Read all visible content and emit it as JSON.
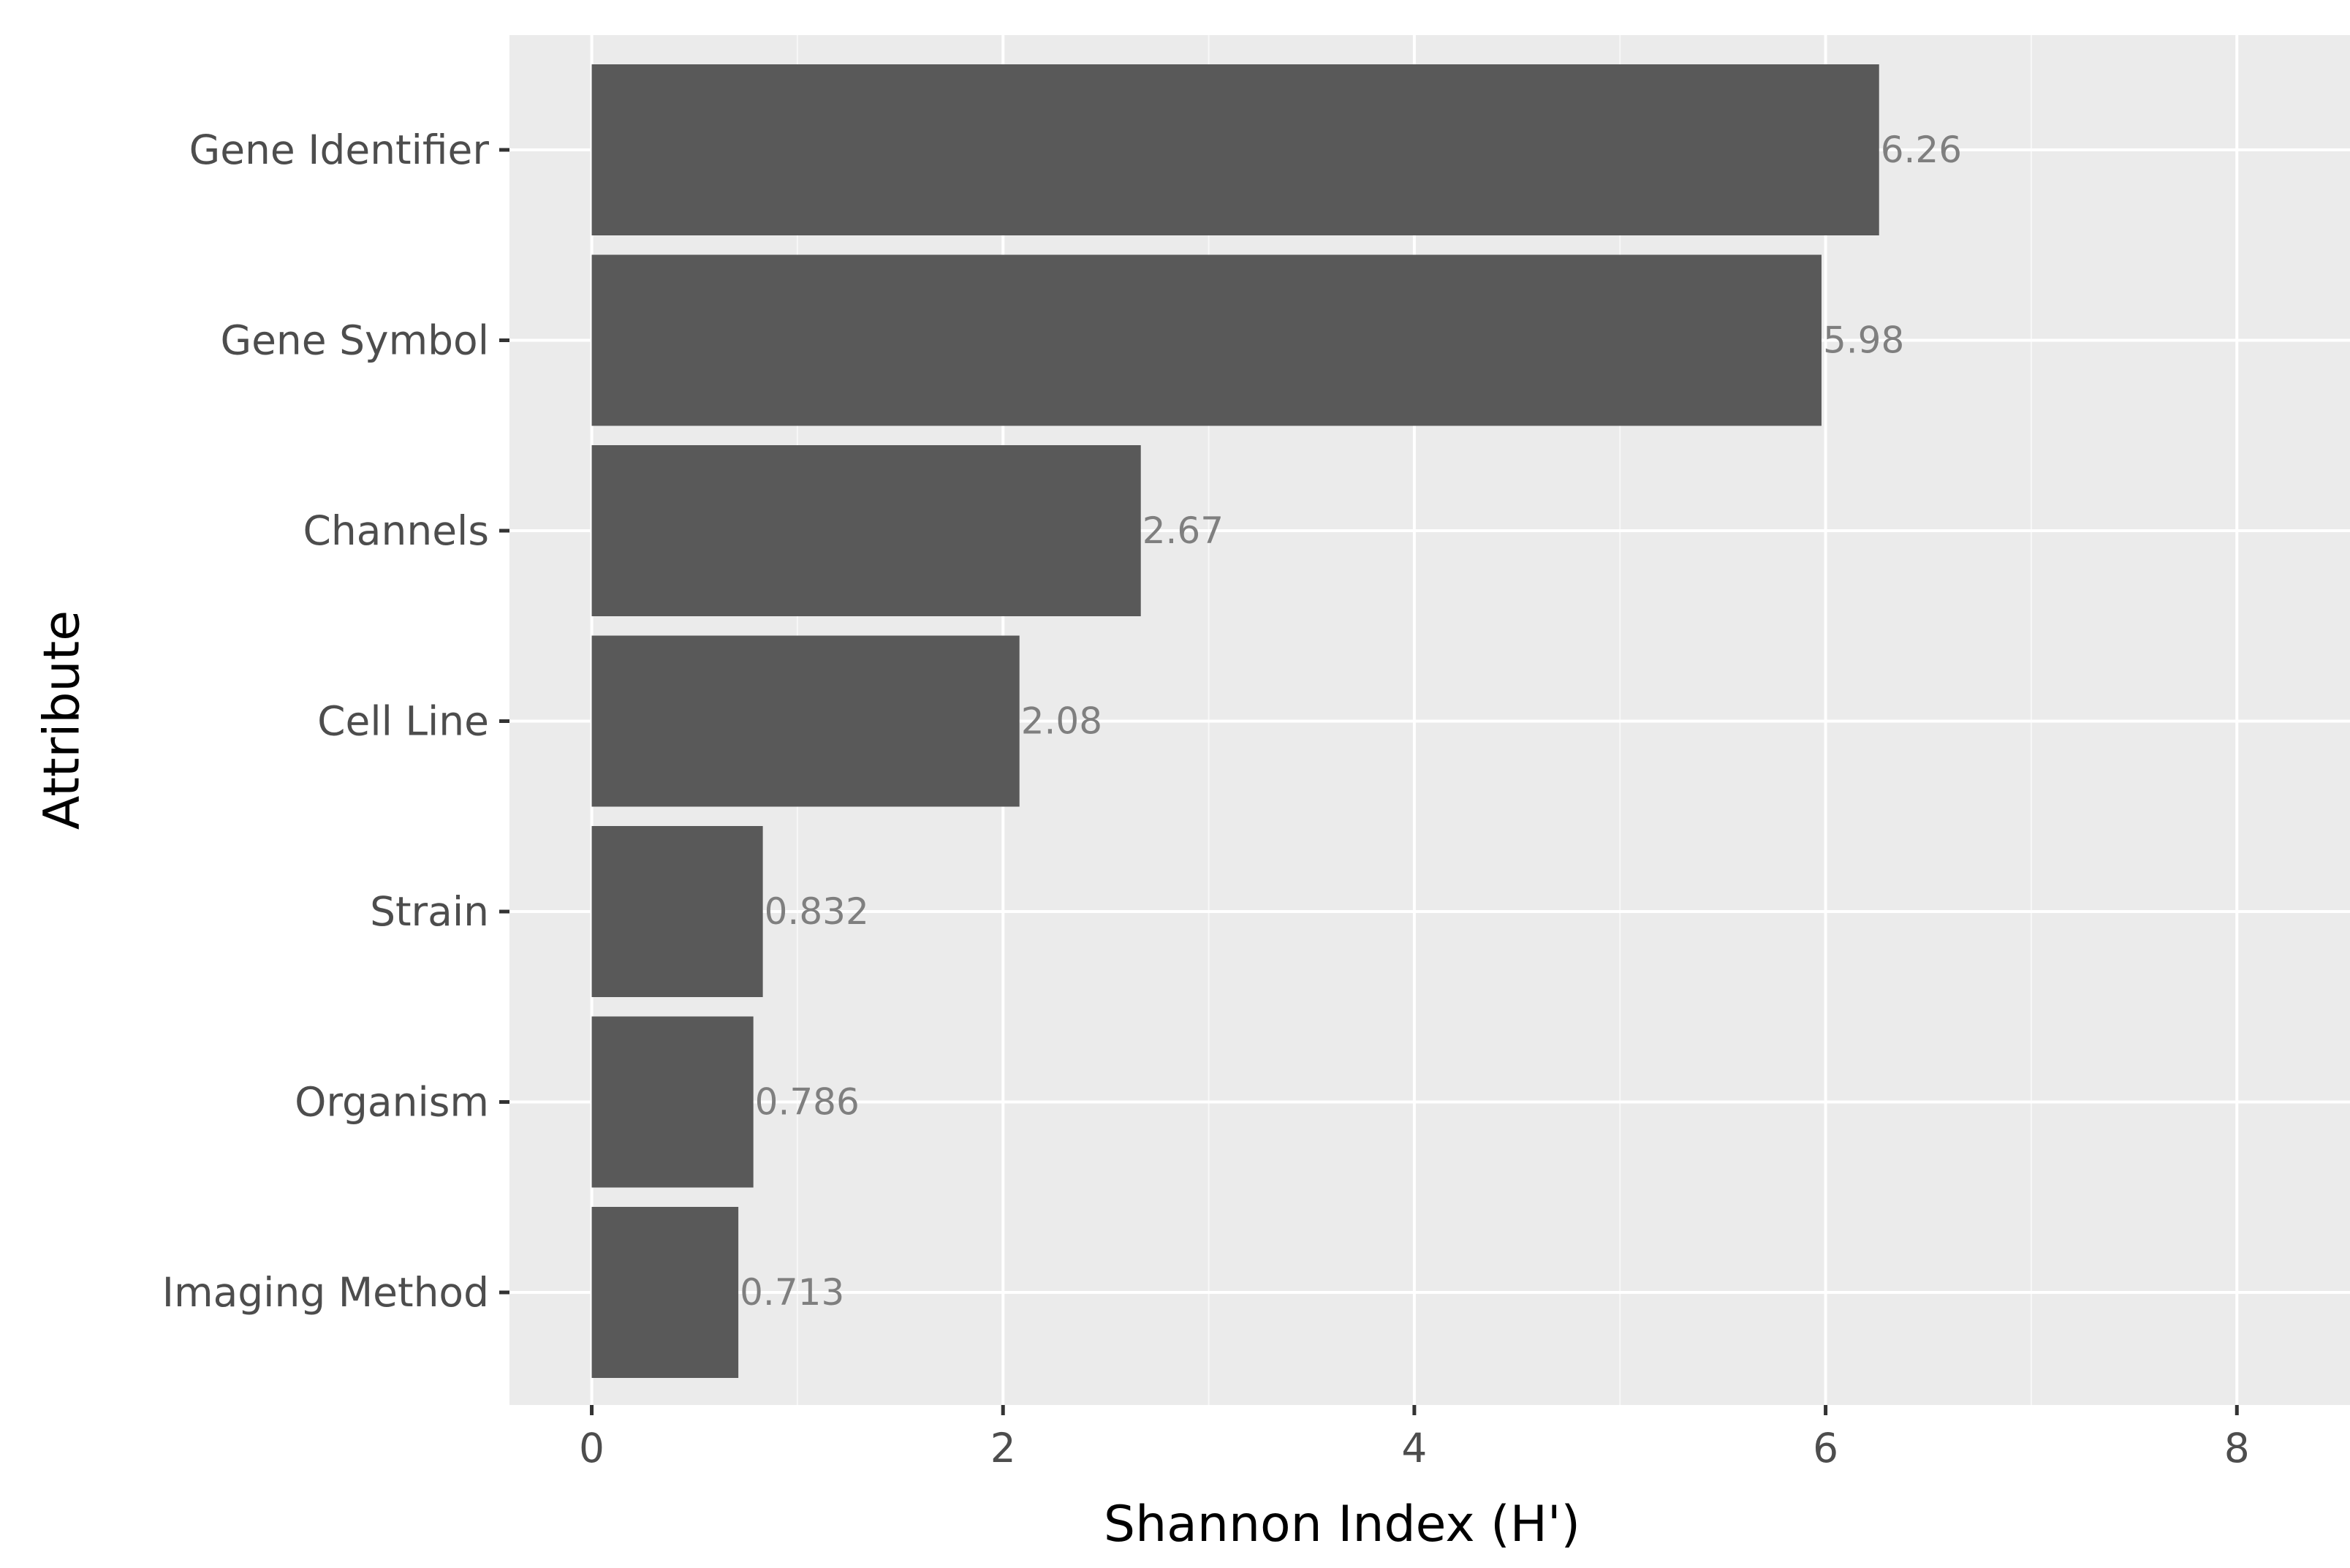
{
  "chart_data": {
    "type": "bar",
    "orientation": "horizontal",
    "categories": [
      "Gene Identifier",
      "Gene Symbol",
      "Channels",
      "Cell Line",
      "Strain",
      "Organism",
      "Imaging Method"
    ],
    "values": [
      6.26,
      5.98,
      2.67,
      2.08,
      0.832,
      0.786,
      0.713
    ],
    "data_labels": [
      "6.26",
      "5.98",
      "2.67",
      "2.08",
      "0.832",
      "0.786",
      "0.713"
    ],
    "xlabel": "Shannon Index (H')",
    "ylabel": "Attribute",
    "xlim": [
      -0.4,
      8.55
    ],
    "xticks": [
      0,
      2,
      4,
      6,
      8
    ],
    "grid": true,
    "legend": "none",
    "colors": {
      "bar": "#595959",
      "panel": "#ebebeb",
      "grid_major": "#ffffff",
      "grid_minor": "#f7f7f7",
      "tick_text": "#4d4d4d",
      "label_text": "#7f7f7f"
    }
  }
}
